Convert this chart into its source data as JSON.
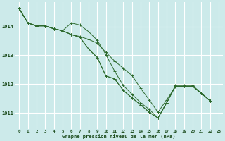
{
  "title": "Graphe pression niveau de la mer (hPa)",
  "bg_color": "#cceaea",
  "grid_color": "#ffffff",
  "line_color": "#2d6a2d",
  "marker_color": "#2d6a2d",
  "tick_color": "#1a4a1a",
  "xlim": [
    -0.5,
    23.5
  ],
  "ylim": [
    1010.45,
    1014.85
  ],
  "yticks": [
    1011,
    1012,
    1013,
    1014
  ],
  "xticks": [
    0,
    1,
    2,
    3,
    4,
    5,
    6,
    7,
    8,
    9,
    10,
    11,
    12,
    13,
    14,
    15,
    16,
    17,
    18,
    19,
    20,
    21,
    22,
    23
  ],
  "series": [
    [
      1014.62,
      1014.12,
      1014.02,
      1014.02,
      1013.92,
      1013.85,
      1013.72,
      1013.65,
      1013.55,
      1013.42,
      1013.1,
      1012.8,
      1012.55,
      1012.3,
      1011.85,
      1011.45,
      1011.02,
      1011.45,
      1011.9,
      1011.92,
      1011.92,
      1011.68,
      1011.42
    ],
    [
      1014.62,
      1014.12,
      1014.02,
      1014.02,
      1013.92,
      1013.85,
      1014.12,
      1014.05,
      1013.82,
      1013.52,
      1013.02,
      1012.45,
      1011.95,
      1011.65,
      1011.35,
      1011.12,
      1010.82,
      1011.35,
      1011.95,
      1011.95,
      1011.95,
      1011.68,
      1011.42
    ],
    [
      1014.62,
      1014.12,
      1014.02,
      1014.02,
      1013.92,
      1013.85,
      1013.72,
      1013.62,
      1013.22,
      1012.92,
      1012.28,
      1012.18,
      1011.78,
      1011.52,
      1011.28,
      1011.02,
      1010.82,
      1011.35,
      1011.92,
      1011.92,
      1011.92,
      1011.68,
      1011.42
    ],
    [
      1014.62,
      1014.12,
      1014.02,
      1014.02,
      1013.92,
      1013.85,
      1013.72,
      1013.62,
      1013.22,
      1012.92,
      1012.28,
      1012.18,
      1011.78,
      1011.52,
      1011.28,
      1011.02,
      1010.82,
      1011.35,
      1011.92,
      1011.92,
      1011.92,
      1011.68,
      1011.42
    ]
  ]
}
